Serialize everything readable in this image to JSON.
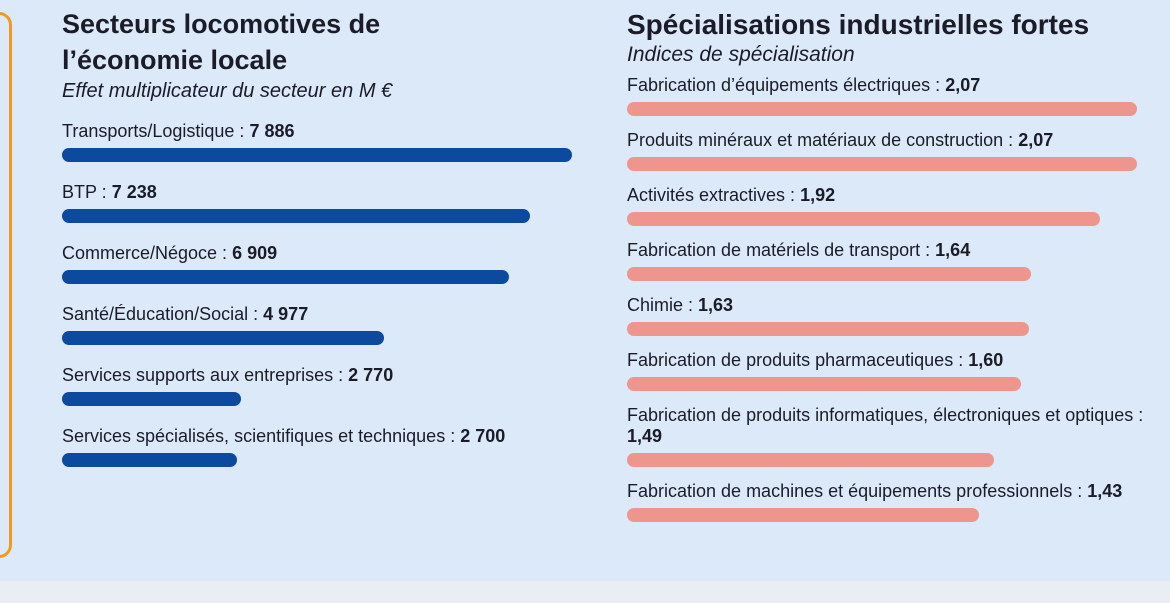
{
  "chart_data": [
    {
      "type": "bar",
      "title": "Secteurs locomotives de l’économie locale",
      "subtitle": "Effet multiplicateur du secteur en M €",
      "categories": [
        "Transports/Logistique :",
        "BTP :",
        "Commerce/Négoce :",
        "Santé/Éducation/Social :",
        "Services supports aux entreprises :",
        "Services spécialisés, scientifiques et techniques :"
      ],
      "values": [
        7886,
        7238,
        6909,
        4977,
        2770,
        2700
      ],
      "value_labels": [
        "7 886",
        "7 238",
        "6 909",
        "4 977",
        "2 770",
        "2 700"
      ],
      "color": "#0b4a9e",
      "xlim": [
        0,
        7886
      ]
    },
    {
      "type": "bar",
      "title": "Spécialisations industrielles fortes",
      "subtitle": "Indices de spécialisation",
      "categories": [
        "Fabrication d’équipements électriques :",
        "Produits minéraux et matériaux de construction :",
        "Activités extractives :",
        "Fabrication de matériels de transport :",
        "Chimie :",
        "Fabrication de produits pharmaceutiques :",
        "Fabrication de produits informatiques, électroniques et optiques :",
        "Fabrication de machines et équipements professionnels :"
      ],
      "values": [
        2.07,
        2.07,
        1.92,
        1.64,
        1.63,
        1.6,
        1.49,
        1.43
      ],
      "value_labels": [
        "2,07",
        "2,07",
        "1,92",
        "1,64",
        "1,63",
        "1,60",
        "1,49",
        "1,43"
      ],
      "color": "#ee958e",
      "xlim": [
        0,
        2.07
      ]
    }
  ]
}
